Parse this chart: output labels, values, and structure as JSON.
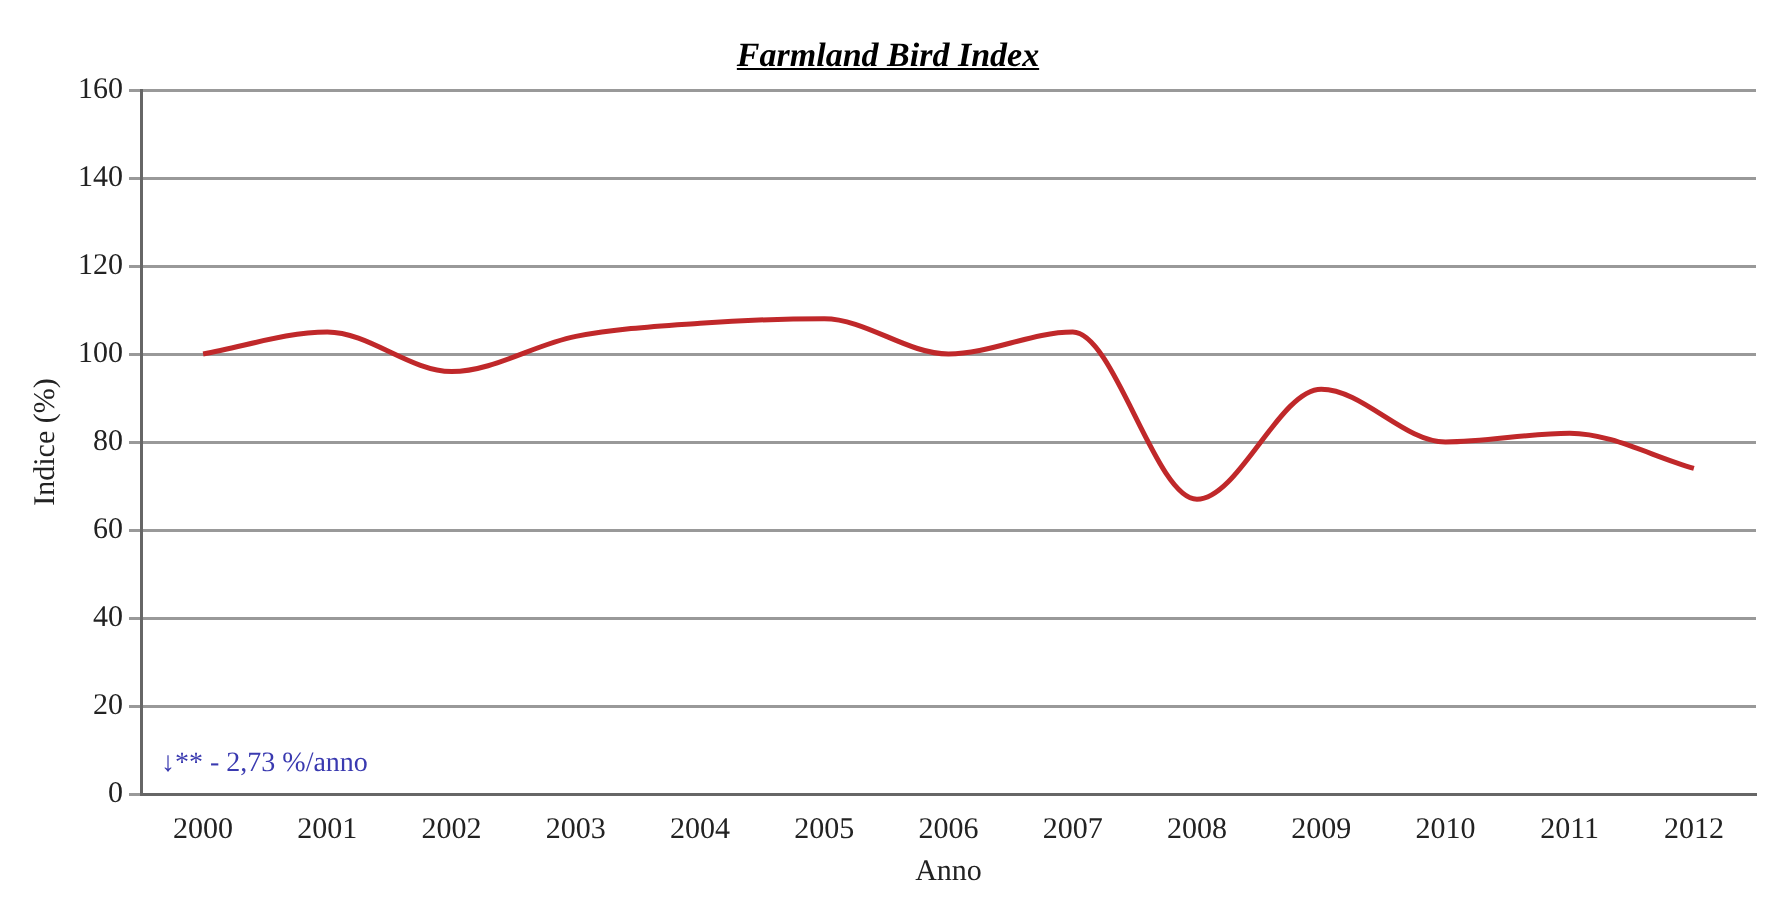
{
  "chart_data": {
    "type": "line",
    "title": "Farmland Bird Index",
    "xlabel": "Anno",
    "ylabel": "Indice (%)",
    "categories": [
      "2000",
      "2001",
      "2002",
      "2003",
      "2004",
      "2005",
      "2006",
      "2007",
      "2008",
      "2009",
      "2010",
      "2011",
      "2012"
    ],
    "series": [
      {
        "color": "#c0282a",
        "values": [
          100,
          105,
          96,
          104,
          107,
          108,
          100,
          105,
          67,
          92,
          80,
          82,
          74
        ]
      }
    ],
    "ylim": [
      0,
      160
    ],
    "yticks": [
      0,
      20,
      40,
      60,
      80,
      100,
      120,
      140,
      160
    ],
    "grid": "y",
    "legend": false,
    "marker": "none",
    "line_style": "solid",
    "annotations": [
      "↓** - 2,73 %/anno"
    ]
  }
}
